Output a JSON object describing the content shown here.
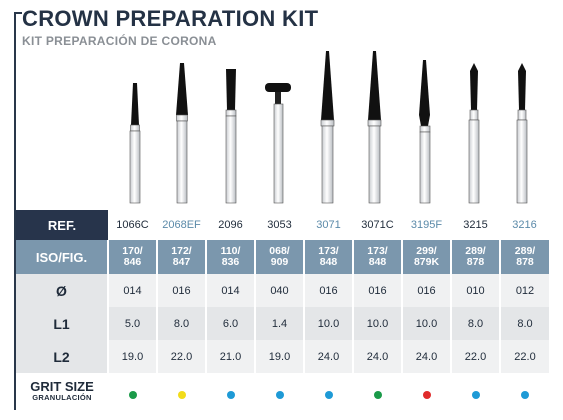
{
  "header": {
    "title": "CROWN PREPARATION KIT",
    "subtitle": "KIT PREPARACIÓN DE CORONA"
  },
  "table": {
    "ref_label": "REF.",
    "iso_label": "ISO/FIG.",
    "diameter_label": "Ø",
    "l1_label": "L1",
    "l2_label": "L2",
    "grit_label": "GRIT SIZE",
    "grit_sublabel": "GRANULACIÓN",
    "columns": [
      {
        "ref": "1066C",
        "ref_color": "#1f2b3a",
        "iso_top": "170/",
        "iso_bottom": "846",
        "diameter": "014",
        "l1": "5.0",
        "l2": "19.0",
        "grit": "green",
        "grit_color": "#1a9a49"
      },
      {
        "ref": "2068EF",
        "ref_color": "#5b8aa9",
        "iso_top": "172/",
        "iso_bottom": "847",
        "diameter": "016",
        "l1": "8.0",
        "l2": "22.0",
        "grit": "yellow",
        "grit_color": "#f2dc1a"
      },
      {
        "ref": "2096",
        "ref_color": "#1f2b3a",
        "iso_top": "110/",
        "iso_bottom": "836",
        "diameter": "014",
        "l1": "6.0",
        "l2": "21.0",
        "grit": "blue",
        "grit_color": "#1e9ad6"
      },
      {
        "ref": "3053",
        "ref_color": "#1f2b3a",
        "iso_top": "068/",
        "iso_bottom": "909",
        "diameter": "040",
        "l1": "1.4",
        "l2": "19.0",
        "grit": "blue",
        "grit_color": "#1e9ad6"
      },
      {
        "ref": "3071",
        "ref_color": "#5b8aa9",
        "iso_top": "173/",
        "iso_bottom": "848",
        "diameter": "016",
        "l1": "10.0",
        "l2": "24.0",
        "grit": "blue",
        "grit_color": "#1e9ad6"
      },
      {
        "ref": "3071C",
        "ref_color": "#1f2b3a",
        "iso_top": "173/",
        "iso_bottom": "848",
        "diameter": "016",
        "l1": "10.0",
        "l2": "24.0",
        "grit": "green",
        "grit_color": "#1a9a49"
      },
      {
        "ref": "3195F",
        "ref_color": "#5b8aa9",
        "iso_top": "299/",
        "iso_bottom": "879K",
        "diameter": "016",
        "l1": "10.0",
        "l2": "24.0",
        "grit": "red",
        "grit_color": "#e02b2b"
      },
      {
        "ref": "3215",
        "ref_color": "#1f2b3a",
        "iso_top": "289/",
        "iso_bottom": "878",
        "diameter": "010",
        "l1": "8.0",
        "l2": "22.0",
        "grit": "blue",
        "grit_color": "#1e9ad6"
      },
      {
        "ref": "3216",
        "ref_color": "#5b8aa9",
        "iso_top": "289/",
        "iso_bottom": "878",
        "diameter": "012",
        "l1": "8.0",
        "l2": "22.0",
        "grit": "blue",
        "grit_color": "#1e9ad6"
      }
    ]
  },
  "colors": {
    "dark_navy": "#27344b",
    "steel_blue": "#7b97ad",
    "light_gray": "#e4e6e8"
  }
}
